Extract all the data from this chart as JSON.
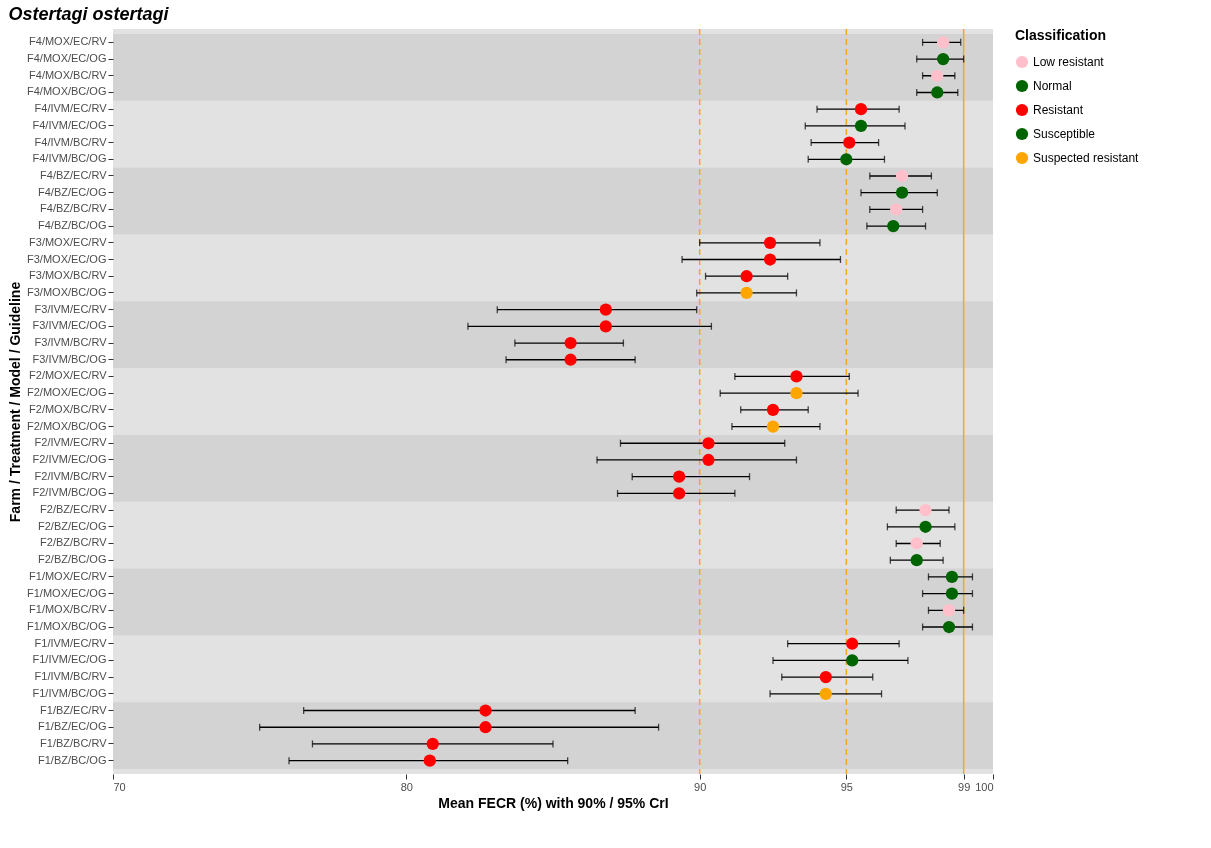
{
  "chart_data": {
    "type": "scatter",
    "orientation": "horizontal",
    "title": "Ostertagi ostertagi",
    "xlabel": "Mean FECR (%) with 90% / 95% CrI",
    "ylabel": "Farm / Treatment / Model / Guideline",
    "legend_title": "Classification",
    "legend": "right",
    "marker": "circle",
    "grid": false,
    "categories": [
      "F4/MOX/EC/RV",
      "F4/MOX/EC/OG",
      "F4/MOX/BC/RV",
      "F4/MOX/BC/OG",
      "F4/IVM/EC/RV",
      "F4/IVM/EC/OG",
      "F4/IVM/BC/RV",
      "F4/IVM/BC/OG",
      "F4/BZ/EC/RV",
      "F4/BZ/EC/OG",
      "F4/BZ/BC/RV",
      "F4/BZ/BC/OG",
      "F3/MOX/EC/RV",
      "F3/MOX/EC/OG",
      "F3/MOX/BC/RV",
      "F3/MOX/BC/OG",
      "F3/IVM/EC/RV",
      "F3/IVM/EC/OG",
      "F3/IVM/BC/RV",
      "F3/IVM/BC/OG",
      "F2/MOX/EC/RV",
      "F2/MOX/EC/OG",
      "F2/MOX/BC/RV",
      "F2/MOX/BC/OG",
      "F2/IVM/EC/RV",
      "F2/IVM/EC/OG",
      "F2/IVM/BC/RV",
      "F2/IVM/BC/OG",
      "F2/BZ/EC/RV",
      "F2/BZ/EC/OG",
      "F2/BZ/BC/RV",
      "F2/BZ/BC/OG",
      "F1/MOX/EC/RV",
      "F1/MOX/EC/OG",
      "F1/MOX/BC/RV",
      "F1/MOX/BC/OG",
      "F1/IVM/EC/RV",
      "F1/IVM/EC/OG",
      "F1/IVM/BC/RV",
      "F1/IVM/BC/OG",
      "F1/BZ/EC/RV",
      "F1/BZ/EC/OG",
      "F1/BZ/BC/RV",
      "F1/BZ/BC/OG"
    ],
    "xlim": [
      70,
      100
    ],
    "xticks": [
      70,
      80,
      90,
      95,
      99,
      100
    ],
    "series": [
      {
        "name": "Low resistant",
        "color": "#ffc0cb",
        "values": [
          98.3,
          null,
          98.1,
          null,
          null,
          null,
          null,
          null,
          96.9,
          null,
          96.7,
          null,
          null,
          null,
          null,
          null,
          null,
          null,
          null,
          null,
          null,
          null,
          null,
          null,
          null,
          null,
          null,
          null,
          97.7,
          null,
          97.4,
          null,
          null,
          null,
          98.5,
          null,
          null,
          null,
          null,
          null,
          null,
          null,
          null,
          null
        ],
        "errors": [
          [
            97.6,
            98.9
          ],
          null,
          [
            97.6,
            98.7
          ],
          null,
          null,
          null,
          null,
          null,
          [
            95.8,
            97.9
          ],
          null,
          [
            95.8,
            97.6
          ],
          null,
          null,
          null,
          null,
          null,
          null,
          null,
          null,
          null,
          null,
          null,
          null,
          null,
          null,
          null,
          null,
          null,
          [
            96.7,
            98.5
          ],
          null,
          [
            96.7,
            98.2
          ],
          null,
          null,
          null,
          [
            97.8,
            99.0
          ],
          null,
          null,
          null,
          null,
          null,
          null,
          null,
          null,
          null
        ]
      },
      {
        "name": "Normal",
        "color": "#006400",
        "values": [
          null,
          98.3,
          null,
          98.1,
          null,
          95.5,
          null,
          95.0,
          null,
          96.9,
          null,
          96.6,
          null,
          null,
          null,
          null,
          null,
          null,
          null,
          null,
          null,
          null,
          null,
          null,
          null,
          null,
          null,
          null,
          null,
          97.7,
          null,
          97.4,
          null,
          98.6,
          null,
          98.5,
          null,
          95.2,
          null,
          null,
          null,
          null,
          null,
          null
        ],
        "errors": [
          null,
          [
            97.4,
            99.0
          ],
          null,
          [
            97.4,
            98.8
          ],
          null,
          [
            93.6,
            97.0
          ],
          null,
          [
            93.7,
            96.3
          ],
          null,
          [
            95.5,
            98.1
          ],
          null,
          [
            95.7,
            97.7
          ],
          null,
          null,
          null,
          null,
          null,
          null,
          null,
          null,
          null,
          null,
          null,
          null,
          null,
          null,
          null,
          null,
          null,
          [
            96.4,
            98.7
          ],
          null,
          [
            96.5,
            98.3
          ],
          null,
          [
            97.6,
            99.3
          ],
          null,
          [
            97.6,
            99.3
          ],
          null,
          [
            92.5,
            97.1
          ],
          null,
          null,
          null,
          null,
          null,
          null
        ]
      },
      {
        "name": "Resistant",
        "color": "#ff0000",
        "values": [
          null,
          null,
          null,
          null,
          95.5,
          null,
          95.1,
          null,
          null,
          null,
          null,
          null,
          92.4,
          92.4,
          91.6,
          null,
          86.8,
          86.8,
          85.6,
          85.6,
          93.3,
          null,
          92.5,
          null,
          90.3,
          90.3,
          89.3,
          89.3,
          null,
          null,
          null,
          null,
          null,
          null,
          null,
          null,
          95.2,
          null,
          94.3,
          null,
          82.7,
          82.7,
          80.9,
          80.8
        ],
        "errors": [
          null,
          null,
          null,
          null,
          [
            94.0,
            96.8
          ],
          null,
          [
            93.8,
            96.1
          ],
          null,
          null,
          null,
          null,
          null,
          [
            90.0,
            94.1
          ],
          [
            89.4,
            94.8
          ],
          [
            90.2,
            93.0
          ],
          null,
          [
            83.1,
            89.9
          ],
          [
            82.1,
            90.4
          ],
          [
            83.7,
            87.4
          ],
          [
            83.4,
            87.8
          ],
          [
            91.2,
            95.1
          ],
          null,
          [
            91.4,
            93.7
          ],
          null,
          [
            87.3,
            92.9
          ],
          [
            86.5,
            93.3
          ],
          [
            87.7,
            91.7
          ],
          [
            87.2,
            91.2
          ],
          null,
          null,
          null,
          null,
          null,
          null,
          null,
          null,
          [
            93.0,
            96.8
          ],
          null,
          [
            92.8,
            95.9
          ],
          null,
          [
            76.5,
            87.8
          ],
          [
            75.0,
            88.6
          ],
          [
            76.8,
            85.0
          ],
          [
            76.0,
            85.5
          ]
        ]
      },
      {
        "name": "Susceptible",
        "color": "#006400",
        "values": [
          null,
          null,
          null,
          null,
          null,
          null,
          null,
          null,
          null,
          null,
          null,
          null,
          null,
          null,
          null,
          null,
          null,
          null,
          null,
          null,
          null,
          null,
          null,
          null,
          null,
          null,
          null,
          null,
          null,
          null,
          null,
          null,
          98.6,
          null,
          null,
          null,
          null,
          null,
          null,
          null,
          null,
          null,
          null,
          null
        ],
        "errors": [
          null,
          null,
          null,
          null,
          null,
          null,
          null,
          null,
          null,
          null,
          null,
          null,
          null,
          null,
          null,
          null,
          null,
          null,
          null,
          null,
          null,
          null,
          null,
          null,
          null,
          null,
          null,
          null,
          null,
          null,
          null,
          null,
          [
            97.8,
            99.3
          ],
          null,
          null,
          null,
          null,
          null,
          null,
          null,
          null,
          null,
          null,
          null
        ]
      },
      {
        "name": "Suspected resistant",
        "color": "#ffa500",
        "values": [
          null,
          null,
          null,
          null,
          null,
          null,
          null,
          null,
          null,
          null,
          null,
          null,
          null,
          null,
          null,
          91.6,
          null,
          null,
          null,
          null,
          null,
          93.3,
          null,
          92.5,
          null,
          null,
          null,
          null,
          null,
          null,
          null,
          null,
          null,
          null,
          null,
          null,
          null,
          null,
          null,
          94.3,
          null,
          null,
          null,
          null
        ],
        "errors": [
          null,
          null,
          null,
          null,
          null,
          null,
          null,
          null,
          null,
          null,
          null,
          null,
          null,
          null,
          null,
          [
            89.9,
            93.3
          ],
          null,
          null,
          null,
          null,
          null,
          [
            90.7,
            95.4
          ],
          null,
          [
            91.1,
            94.1
          ],
          null,
          null,
          null,
          null,
          null,
          null,
          null,
          null,
          null,
          null,
          null,
          null,
          null,
          null,
          null,
          [
            92.4,
            96.2
          ],
          null,
          null,
          null,
          null
        ]
      }
    ],
    "ref_lines": [
      {
        "axis": "x",
        "value": 90,
        "color": "#f5a623",
        "line_style": "dashed"
      },
      {
        "axis": "x",
        "value": 95,
        "color": "#f5a623",
        "line_style": "dashed"
      },
      {
        "axis": "x",
        "value": 99,
        "color": "#f5a623",
        "line_style": "solid"
      }
    ],
    "bands": [
      {
        "axis": "y",
        "from": "F4/MOX/EC/RV",
        "to": "F4/MOX/BC/OG",
        "color": "#d3d3d3"
      },
      {
        "axis": "y",
        "from": "F4/BZ/EC/RV",
        "to": "F4/BZ/BC/OG",
        "color": "#d3d3d3"
      },
      {
        "axis": "y",
        "from": "F3/IVM/EC/RV",
        "to": "F3/IVM/BC/OG",
        "color": "#d3d3d3"
      },
      {
        "axis": "y",
        "from": "F2/IVM/EC/RV",
        "to": "F2/IVM/BC/OG",
        "color": "#d3d3d3"
      },
      {
        "axis": "y",
        "from": "F1/MOX/EC/RV",
        "to": "F1/MOX/BC/OG",
        "color": "#d3d3d3"
      },
      {
        "axis": "y",
        "from": "F1/BZ/EC/RV",
        "to": "F1/BZ/BC/OG",
        "color": "#d3d3d3"
      }
    ]
  }
}
